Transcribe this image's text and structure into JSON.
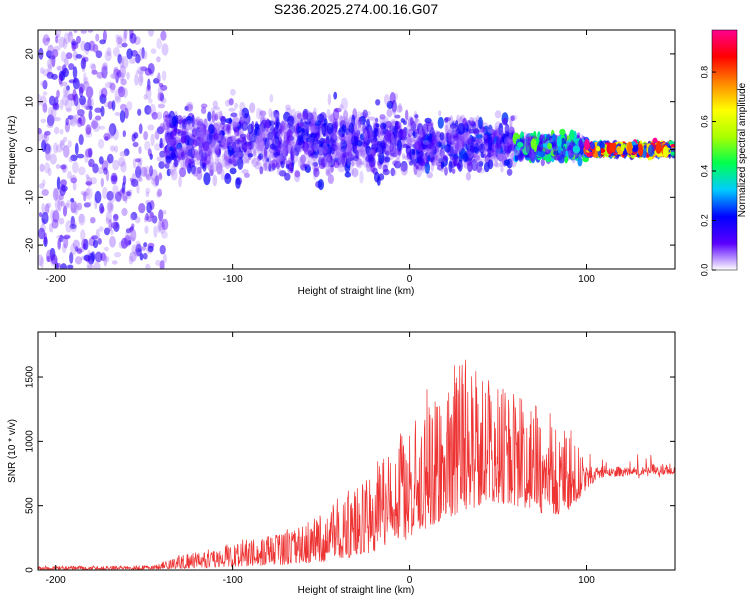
{
  "title": "S236.2025.274.00.16.G07",
  "chart_data": [
    {
      "type": "heatmap",
      "name": "spectrogram",
      "xlabel": "Height of straight line (km)",
      "ylabel": "Frequency (Hz)",
      "xlim": [
        -210,
        150
      ],
      "ylim": [
        -25,
        25
      ],
      "xticks": [
        -200,
        -100,
        0,
        100
      ],
      "yticks": [
        -20,
        -10,
        0,
        10,
        20
      ],
      "colorbar": {
        "label": "Normalized spectral amplitude",
        "range": [
          0,
          0.97
        ],
        "ticks": [
          0.0,
          0.2,
          0.4,
          0.6,
          0.8
        ],
        "tick_labels": [
          "0.0",
          "0.2",
          "0.4",
          "0.6",
          "0.8"
        ],
        "colors": [
          "#ffffff",
          "#5a00ff",
          "#0000ff",
          "#00ccff",
          "#00ff50",
          "#aaff00",
          "#ffff00",
          "#ff8800",
          "#ff0000",
          "#ff0090"
        ]
      },
      "regions": [
        {
          "x": [
            -210,
            -138
          ],
          "freq_spread": 25,
          "center": 0,
          "amplitude": 0.15,
          "density": 0.55
        },
        {
          "x": [
            -138,
            0
          ],
          "freq_spread": 12,
          "center": 1.5,
          "amplitude": 0.18,
          "density": 0.7
        },
        {
          "x": [
            0,
            60
          ],
          "freq_spread": 9,
          "center": 1,
          "amplitude": 0.2,
          "density": 0.7
        },
        {
          "x": [
            60,
            100
          ],
          "freq_spread": 4,
          "center": 0.5,
          "amplitude": 0.4,
          "density": 0.9
        },
        {
          "x": [
            100,
            150
          ],
          "freq_spread": 1.5,
          "center": 0,
          "amplitude": 0.85,
          "density": 1.0
        }
      ]
    },
    {
      "type": "line",
      "name": "snr",
      "xlabel": "Height of straight line (km)",
      "ylabel": "SNR (10 * v/v)",
      "xlim": [
        -210,
        150
      ],
      "ylim": [
        0,
        1850
      ],
      "xticks": [
        -200,
        -100,
        0,
        100
      ],
      "yticks": [
        0,
        500,
        1000,
        1500
      ],
      "color": "#ee3333",
      "envelope": {
        "x": [
          -210,
          -180,
          -150,
          -140,
          -130,
          -110,
          -90,
          -70,
          -60,
          -50,
          -40,
          -30,
          -20,
          -10,
          0,
          10,
          20,
          30,
          40,
          50,
          60,
          70,
          80,
          90,
          100,
          105,
          110,
          120,
          130,
          140,
          150
        ],
        "low": [
          5,
          5,
          5,
          8,
          10,
          20,
          30,
          40,
          50,
          60,
          80,
          110,
          140,
          180,
          250,
          330,
          400,
          450,
          500,
          520,
          500,
          460,
          420,
          460,
          620,
          700,
          720,
          730,
          740,
          745,
          740
        ],
        "high": [
          30,
          30,
          35,
          60,
          110,
          170,
          230,
          300,
          360,
          450,
          550,
          650,
          770,
          900,
          1100,
          1300,
          1450,
          1550,
          1500,
          1450,
          1400,
          1300,
          1200,
          1050,
          900,
          820,
          800,
          810,
          820,
          830,
          830
        ]
      }
    }
  ]
}
